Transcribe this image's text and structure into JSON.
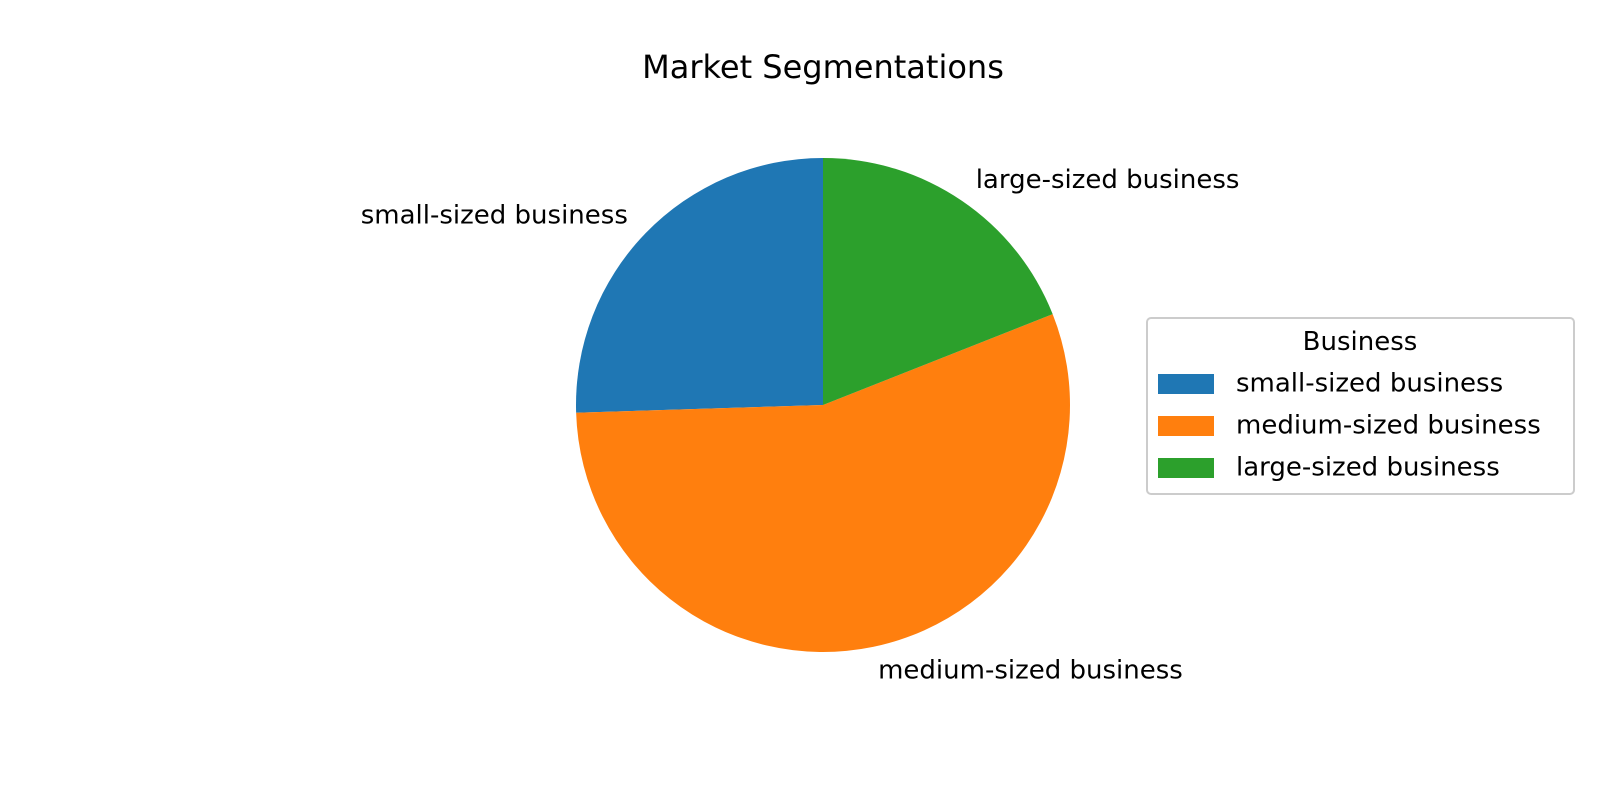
{
  "chart_data": {
    "type": "pie",
    "title": "Market Segmentations",
    "slices": [
      {
        "label": "small-sized business",
        "value": 25.5,
        "color": "#1f77b4"
      },
      {
        "label": "medium-sized business",
        "value": 55.5,
        "color": "#ff7f0e"
      },
      {
        "label": "large-sized business",
        "value": 19.0,
        "color": "#2ca02c"
      }
    ],
    "start_angle_deg": 90,
    "direction": "counterclockwise",
    "legend": {
      "title": "Business",
      "placement": "center-right",
      "entries": [
        "small-sized business",
        "medium-sized business",
        "large-sized business"
      ]
    }
  }
}
